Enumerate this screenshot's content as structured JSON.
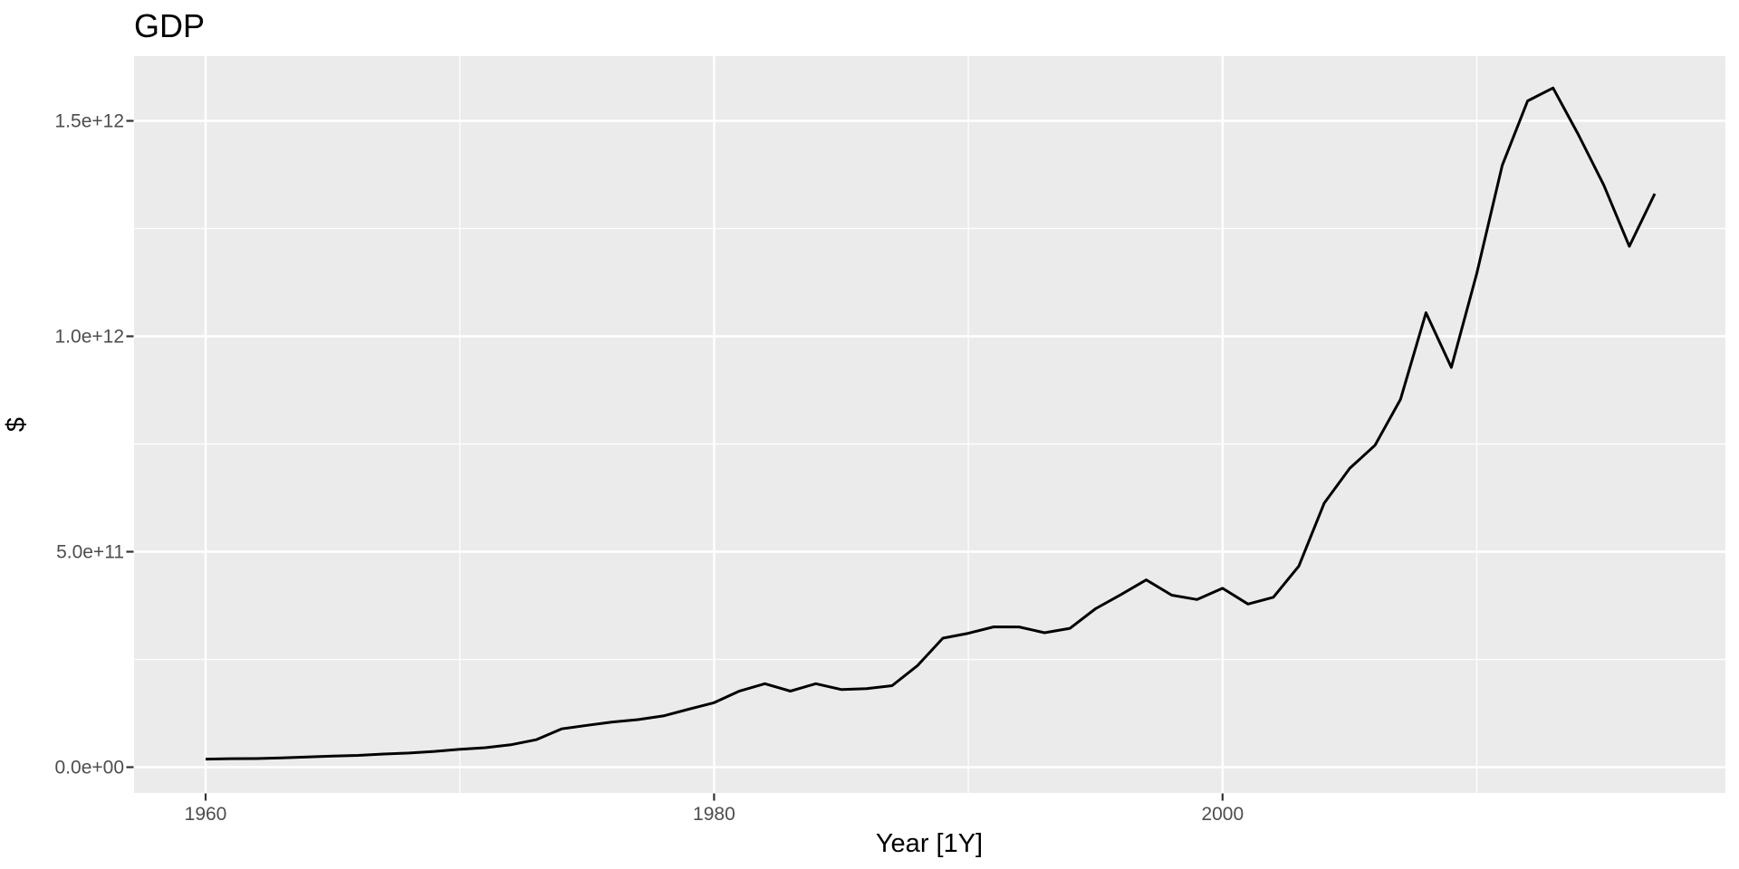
{
  "chart_data": {
    "type": "line",
    "title": "GDP",
    "xlabel": "Year [1Y]",
    "ylabel": "$",
    "unit": "USD, series values stored in billions (1e9 $)",
    "grid": true,
    "legend_position": "none",
    "xlim": [
      1957.15,
      2019.85
    ],
    "ylim": [
      -59300000000,
      1654300000000
    ],
    "x_ticks": {
      "major": [
        {
          "value": 1960,
          "label": "1960"
        },
        {
          "value": 1980,
          "label": "1980"
        },
        {
          "value": 2000,
          "label": "2000"
        }
      ],
      "minor": [
        1970,
        1990,
        2010
      ]
    },
    "y_ticks": {
      "major": [
        {
          "value_billions": 0,
          "label": "0.0e+00"
        },
        {
          "value_billions": 500,
          "label": "5.0e+11"
        },
        {
          "value_billions": 1000,
          "label": "1.0e+12"
        },
        {
          "value_billions": 1500,
          "label": "1.5e+12"
        }
      ],
      "minor": [
        250,
        750,
        1250
      ]
    },
    "series": [
      {
        "name": "GDP",
        "x": [
          1960,
          1961,
          1962,
          1963,
          1964,
          1965,
          1966,
          1967,
          1968,
          1969,
          1970,
          1971,
          1972,
          1973,
          1974,
          1975,
          1976,
          1977,
          1978,
          1979,
          1980,
          1981,
          1982,
          1983,
          1984,
          1985,
          1986,
          1987,
          1988,
          1989,
          1990,
          1991,
          1992,
          1993,
          1994,
          1995,
          1996,
          1997,
          1998,
          1999,
          2000,
          2001,
          2002,
          2003,
          2004,
          2005,
          2006,
          2007,
          2008,
          2009,
          2010,
          2011,
          2012,
          2013,
          2014,
          2015,
          2016,
          2017
        ],
        "values_billions": [
          18.6,
          19.7,
          19.9,
          21.5,
          23.8,
          25.9,
          27.3,
          30.4,
          32.7,
          36.6,
          41.3,
          45.1,
          51.9,
          63.7,
          88.8,
          97.1,
          104.9,
          110.2,
          118.9,
          134.5,
          149.6,
          176.6,
          193.8,
          176.4,
          193.7,
          180.2,
          182.2,
          189.1,
          235.8,
          299.3,
          310.8,
          325.7,
          325.4,
          312.0,
          322.2,
          367.6,
          400.4,
          434.6,
          399.1,
          389.0,
          415.2,
          378.5,
          394.3,
          466.5,
          613.0,
          693.4,
          747.2,
          853.8,
          1054.6,
          927.8,
          1146.1,
          1396.6,
          1546.2,
          1576.2,
          1467.5,
          1350.5,
          1208.8,
          1330.8
        ]
      }
    ],
    "colors": {
      "page_bg": "#FFFFFF",
      "panel_bg": "#EBEBEB",
      "gridline": "#FFFFFF",
      "series_line": "#000000",
      "tick_mark": "#333333",
      "tick_text": "#4D4D4D",
      "title_text": "#000000"
    }
  }
}
